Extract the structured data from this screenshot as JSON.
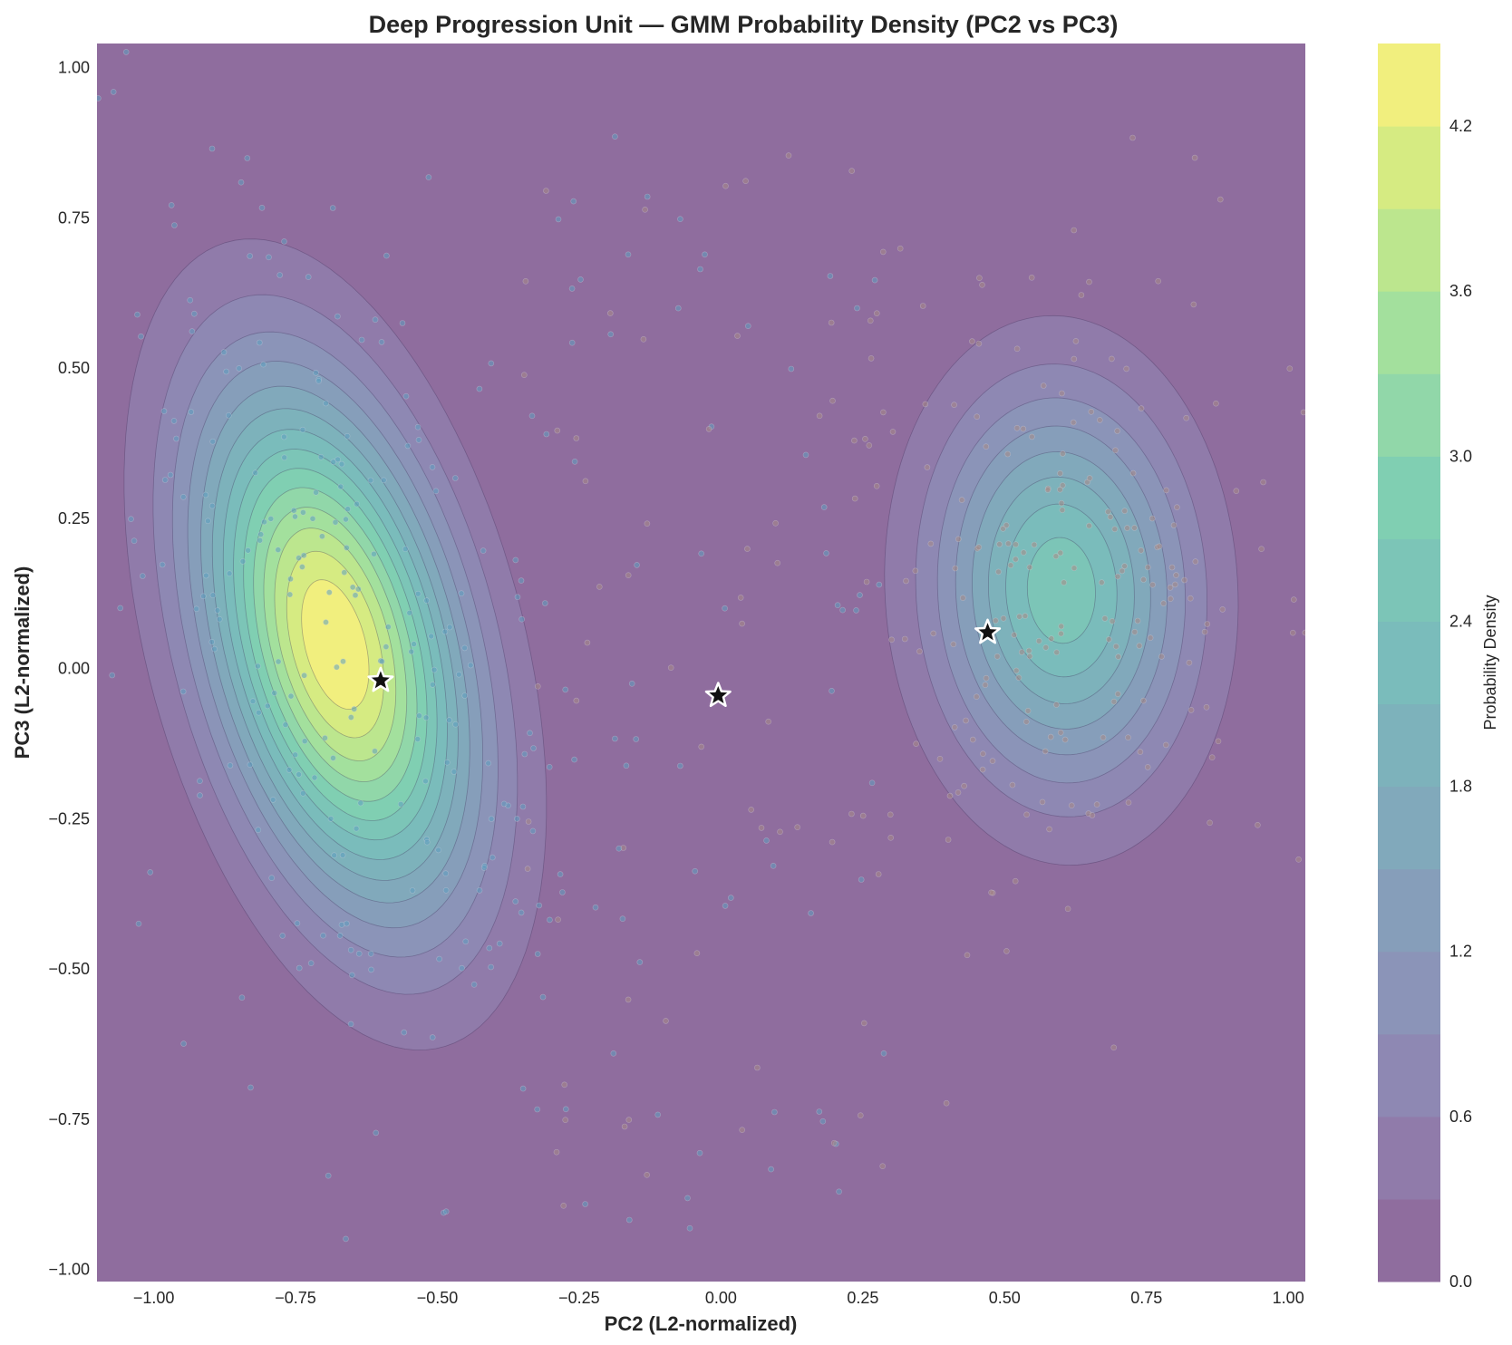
{
  "chart_data": {
    "type": "contour",
    "title": "Deep Progression Unit — GMM Probability Density (PC2 vs PC3)",
    "xlabel": "PC2 (L2-normalized)",
    "ylabel": "PC3 (L2-normalized)",
    "xlim": [
      -1.1,
      1.03
    ],
    "ylim": [
      -1.02,
      1.04
    ],
    "x_ticks": [
      -1.0,
      -0.75,
      -0.5,
      -0.25,
      0.0,
      0.25,
      0.5,
      0.75,
      1.0
    ],
    "x_tick_labels": [
      "−1.00",
      "−0.75",
      "−0.50",
      "−0.25",
      "0.00",
      "0.25",
      "0.50",
      "0.75",
      "1.00"
    ],
    "y_ticks": [
      -1.0,
      -0.75,
      -0.5,
      -0.25,
      0.0,
      0.25,
      0.5,
      0.75,
      1.0
    ],
    "y_tick_labels": [
      "−1.00",
      "−0.75",
      "−0.50",
      "−0.25",
      "0.00",
      "0.25",
      "0.50",
      "0.75",
      "1.00"
    ],
    "colorbar": {
      "label": "Probability Density",
      "range": [
        0.0,
        4.5
      ],
      "ticks": [
        0.0,
        0.6,
        1.2,
        1.8,
        2.4,
        3.0,
        3.6,
        4.2
      ],
      "tick_labels": [
        "0.0",
        "0.6",
        "1.2",
        "1.8",
        "2.4",
        "3.0",
        "3.6",
        "4.2"
      ],
      "colormap": "viridis",
      "alpha": 0.6
    },
    "contour_levels": [
      0.0,
      0.3,
      0.6,
      0.9,
      1.2,
      1.5,
      1.8,
      2.1,
      2.4,
      2.7,
      3.0,
      3.3,
      3.6,
      3.9,
      4.2,
      4.5
    ],
    "gmm_components": [
      {
        "mean": [
          -0.68,
          0.04
        ],
        "std": [
          0.16,
          0.29
        ],
        "rho": -0.4,
        "peak_density": 4.5
      },
      {
        "mean": [
          0.6,
          0.13
        ],
        "std": [
          0.15,
          0.22
        ],
        "rho": -0.05,
        "peak_density": 2.6
      }
    ],
    "centroids": [
      {
        "x": -0.6,
        "y": -0.02
      },
      {
        "x": -0.005,
        "y": -0.045
      },
      {
        "x": 0.47,
        "y": 0.06
      }
    ],
    "scatter_points": 600,
    "grid": false,
    "colors": {
      "background": "#8c6a9b",
      "point_blue": "#5f9fc0",
      "point_tan": "#a88a86",
      "star_fill": "#111111",
      "star_edge": "#ffffff"
    }
  }
}
